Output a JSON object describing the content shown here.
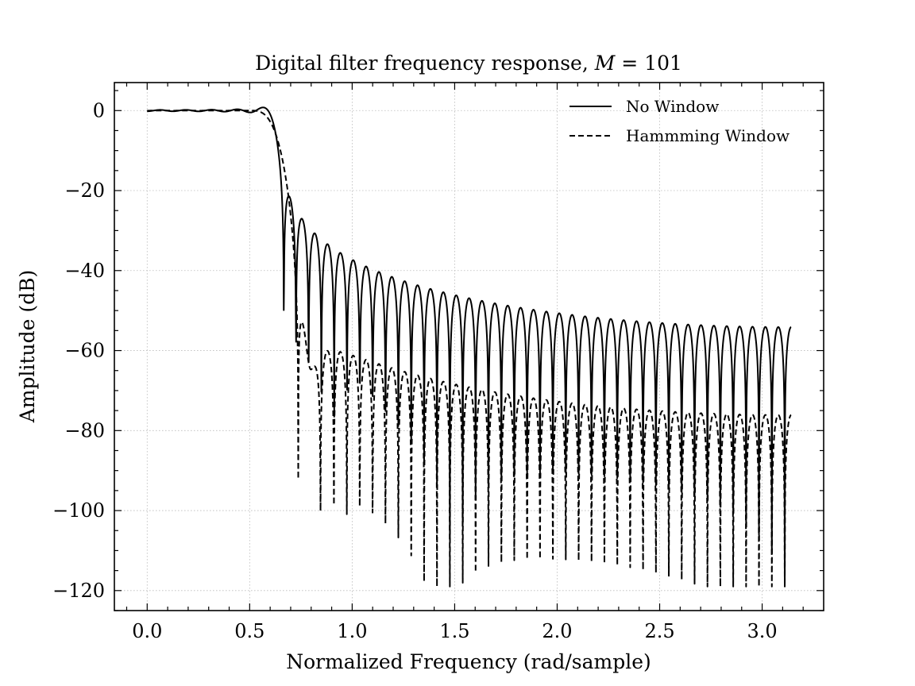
{
  "chart_data": {
    "type": "line",
    "title": "Digital filter frequency response, M = 101",
    "title_prefix": "Digital filter frequency response,",
    "title_var": "M",
    "title_eq": "= 101",
    "xlabel": "Normalized Frequency (rad/sample)",
    "ylabel": "Amplitude (dB)",
    "xlim": [
      -0.16,
      3.3
    ],
    "ylim": [
      -125,
      7
    ],
    "xticks": [
      0.0,
      0.5,
      1.0,
      1.5,
      2.0,
      2.5,
      3.0
    ],
    "xtick_labels": [
      "0.0",
      "0.5",
      "1.0",
      "1.5",
      "2.0",
      "2.5",
      "3.0"
    ],
    "yticks": [
      0,
      -20,
      -40,
      -60,
      -80,
      -100,
      -120
    ],
    "ytick_labels": [
      "0",
      "−20",
      "−40",
      "−60",
      "−80",
      "−100",
      "−120"
    ],
    "grid": true,
    "legend_position": "top-right",
    "filter_taps": 101,
    "cutoff_rad": 0.628,
    "x_range": [
      0.0,
      3.14159
    ],
    "series": [
      {
        "name": "No Window",
        "style": "solid",
        "color": "#000000",
        "window": "rectangular",
        "key_points": [
          [
            0.0,
            0.1
          ],
          [
            0.3,
            0.2
          ],
          [
            0.57,
            1.0
          ],
          [
            0.67,
            -37
          ],
          [
            0.72,
            -42
          ],
          [
            1.0,
            -38
          ],
          [
            2.0,
            -50
          ],
          [
            3.1,
            -54
          ]
        ]
      },
      {
        "name": "Hammming Window",
        "style": "dashed",
        "color": "#000000",
        "window": "hamming",
        "key_points": [
          [
            0.0,
            0.0
          ],
          [
            0.5,
            0.0
          ],
          [
            0.73,
            -44
          ],
          [
            0.77,
            -53
          ],
          [
            1.0,
            -61
          ],
          [
            2.0,
            -73
          ],
          [
            3.1,
            -77
          ]
        ]
      }
    ]
  }
}
